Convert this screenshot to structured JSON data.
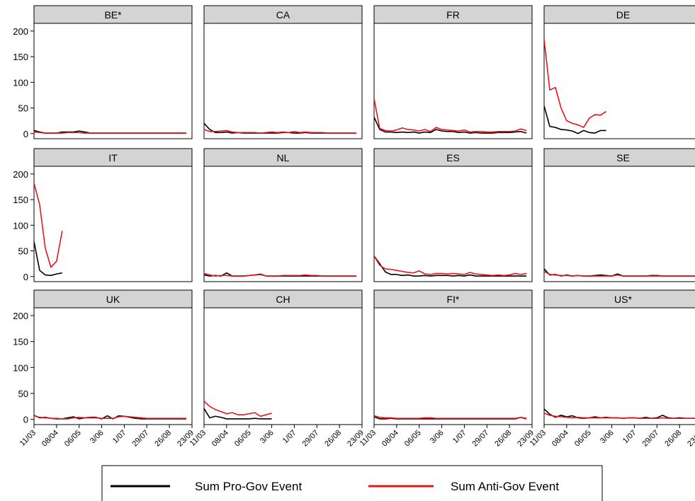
{
  "chart_data": {
    "type": "line",
    "layout": "small-multiples 3x4",
    "x_tick_labels": [
      "11/03",
      "08/04",
      "06/05",
      "3/06",
      "1/07",
      "29/07",
      "26/08",
      "23/09"
    ],
    "y_ticks": [
      0,
      50,
      100,
      150,
      200
    ],
    "ylim": [
      -10,
      215
    ],
    "xlim": [
      0,
      28
    ],
    "grid": false,
    "legend_position": "bottom",
    "series_meta": [
      {
        "key": "pro",
        "name": "Sum Pro-Gov Event",
        "color": "#000000"
      },
      {
        "key": "anti",
        "name": "Sum Anti-Gov Event",
        "color": "#e8141c"
      }
    ],
    "panels": [
      {
        "name": "BE*",
        "pro": [
          6,
          3,
          1,
          1,
          1,
          3,
          3,
          3,
          5,
          3,
          1,
          1,
          1,
          1,
          1,
          1,
          1,
          1,
          1,
          1,
          1,
          1,
          1,
          1,
          1,
          1,
          1,
          1
        ],
        "anti": [
          3,
          2,
          1,
          1,
          1,
          1,
          2,
          2,
          2,
          1,
          1,
          1,
          1,
          1,
          1,
          1,
          1,
          1,
          1,
          1,
          1,
          1,
          1,
          1,
          1,
          1,
          1,
          1
        ]
      },
      {
        "name": "CA",
        "pro": [
          20,
          8,
          2,
          2,
          3,
          1,
          2,
          1,
          1,
          1,
          1,
          1,
          1,
          1,
          2,
          2,
          1,
          1,
          2,
          1,
          1,
          1,
          1,
          1,
          1,
          1,
          1,
          1
        ],
        "anti": [
          8,
          4,
          4,
          5,
          6,
          3,
          2,
          2,
          2,
          2,
          1,
          2,
          3,
          2,
          3,
          2,
          4,
          2,
          3,
          2,
          2,
          2,
          1,
          1,
          1,
          1,
          1,
          1
        ]
      },
      {
        "name": "FR",
        "pro": [
          32,
          8,
          3,
          3,
          2,
          3,
          2,
          3,
          1,
          3,
          2,
          8,
          5,
          4,
          4,
          2,
          3,
          1,
          2,
          1,
          1,
          1,
          2,
          2,
          2,
          3,
          4,
          1
        ],
        "anti": [
          68,
          10,
          6,
          5,
          7,
          11,
          8,
          7,
          5,
          8,
          4,
          12,
          8,
          7,
          6,
          5,
          7,
          3,
          4,
          4,
          3,
          3,
          4,
          4,
          4,
          5,
          9,
          6
        ]
      },
      {
        "name": "DE",
        "pro": [
          54,
          14,
          12,
          8,
          7,
          5,
          0,
          6,
          2,
          1,
          6,
          6
        ],
        "anti": [
          184,
          85,
          90,
          50,
          25,
          20,
          17,
          12,
          30,
          37,
          36,
          43
        ]
      },
      {
        "name": "IT",
        "pro": [
          68,
          12,
          3,
          2,
          5,
          7
        ],
        "anti": [
          182,
          140,
          55,
          18,
          30,
          89
        ]
      },
      {
        "name": "NL",
        "pro": [
          3,
          1,
          2,
          1,
          7,
          1,
          1,
          1,
          2,
          3,
          4,
          1,
          1,
          1,
          1,
          1,
          1,
          1,
          1,
          1,
          1,
          1,
          1,
          1,
          1,
          1,
          1,
          1
        ],
        "anti": [
          6,
          3,
          1,
          2,
          2,
          1,
          1,
          1,
          2,
          3,
          5,
          1,
          1,
          1,
          2,
          2,
          2,
          2,
          3,
          2,
          2,
          1,
          1,
          1,
          1,
          1,
          1,
          1
        ]
      },
      {
        "name": "ES",
        "pro": [
          40,
          25,
          9,
          4,
          4,
          2,
          3,
          1,
          1,
          2,
          1,
          2,
          2,
          2,
          1,
          2,
          1,
          3,
          1,
          1,
          1,
          1,
          1,
          1,
          1,
          1,
          1,
          1
        ],
        "anti": [
          40,
          22,
          15,
          14,
          12,
          10,
          8,
          7,
          11,
          5,
          4,
          6,
          6,
          5,
          6,
          5,
          4,
          8,
          5,
          4,
          3,
          2,
          3,
          2,
          3,
          6,
          4,
          6
        ]
      },
      {
        "name": "SE",
        "pro": [
          15,
          3,
          4,
          1,
          3,
          1,
          2,
          1,
          1,
          2,
          3,
          2,
          1,
          5,
          1,
          1,
          1,
          1,
          1,
          2,
          2,
          1,
          1,
          1,
          1,
          1,
          1,
          1,
          1,
          1,
          8
        ],
        "anti": [
          10,
          4,
          3,
          2,
          2,
          1,
          2,
          1,
          1,
          1,
          1,
          1,
          1,
          3,
          1,
          1,
          1,
          1,
          1,
          1,
          1,
          1,
          1,
          1,
          1,
          1,
          1,
          1,
          1,
          1,
          3
        ]
      },
      {
        "name": "UK",
        "pro": [
          8,
          3,
          4,
          2,
          1,
          1,
          3,
          5,
          1,
          3,
          4,
          4,
          1,
          7,
          1,
          7,
          6,
          4,
          2,
          1,
          1,
          1,
          1,
          1,
          1,
          1,
          1,
          1
        ],
        "anti": [
          7,
          4,
          3,
          2,
          2,
          1,
          1,
          3,
          4,
          3,
          3,
          3,
          2,
          2,
          2,
          5,
          6,
          5,
          4,
          3,
          2,
          2,
          2,
          2,
          2,
          2,
          2,
          2
        ]
      },
      {
        "name": "CH",
        "pro": [
          21,
          3,
          6,
          4,
          1,
          1,
          1,
          1,
          1,
          2,
          1,
          1,
          1
        ],
        "anti": [
          35,
          25,
          19,
          15,
          11,
          13,
          9,
          9,
          11,
          13,
          6,
          9,
          12
        ]
      },
      {
        "name": "FI*",
        "pro": [
          5,
          1,
          1,
          2,
          1,
          1,
          1,
          1,
          1,
          1,
          1,
          1,
          1,
          1,
          1,
          1,
          1,
          1,
          1,
          1,
          1,
          1,
          1,
          1,
          1,
          1,
          4,
          1
        ],
        "anti": [
          7,
          4,
          3,
          3,
          2,
          2,
          2,
          2,
          2,
          3,
          3,
          2,
          2,
          2,
          2,
          2,
          2,
          2,
          2,
          2,
          2,
          2,
          2,
          2,
          2,
          2,
          4,
          2
        ]
      },
      {
        "name": "US*",
        "pro": [
          20,
          10,
          4,
          8,
          5,
          7,
          3,
          2,
          3,
          5,
          3,
          4,
          3,
          3,
          2,
          3,
          3,
          2,
          4,
          2,
          3,
          8,
          3,
          2,
          3,
          2,
          2,
          2,
          2,
          2
        ],
        "anti": [
          12,
          8,
          6,
          5,
          4,
          3,
          4,
          3,
          3,
          3,
          3,
          3,
          3,
          3,
          2,
          3,
          3,
          2,
          2,
          2,
          2,
          3,
          2,
          2,
          2,
          2,
          2,
          2,
          2,
          2
        ]
      }
    ]
  }
}
